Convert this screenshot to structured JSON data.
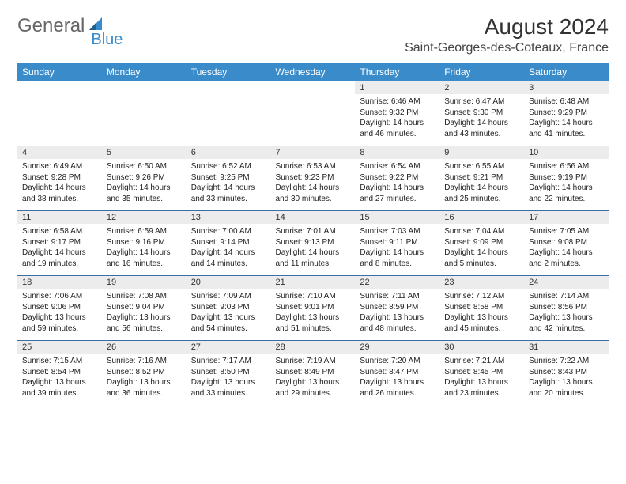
{
  "logo": {
    "word1": "General",
    "word2": "Blue"
  },
  "title": "August 2024",
  "location": "Saint-Georges-des-Coteaux, France",
  "colors": {
    "header_bg": "#3a8bc9",
    "header_text": "#ffffff",
    "daynum_bg": "#ececec",
    "cell_border": "#3a6ea5",
    "title_color": "#333333",
    "body_text": "#222222"
  },
  "typography": {
    "title_fontsize": 28,
    "location_fontsize": 16,
    "dayheader_fontsize": 12,
    "body_fontsize": 10
  },
  "dayHeaders": [
    "Sunday",
    "Monday",
    "Tuesday",
    "Wednesday",
    "Thursday",
    "Friday",
    "Saturday"
  ],
  "weeks": [
    [
      null,
      null,
      null,
      null,
      {
        "num": "1",
        "sunrise": "6:46 AM",
        "sunset": "9:32 PM",
        "daylight": "14 hours and 46 minutes."
      },
      {
        "num": "2",
        "sunrise": "6:47 AM",
        "sunset": "9:30 PM",
        "daylight": "14 hours and 43 minutes."
      },
      {
        "num": "3",
        "sunrise": "6:48 AM",
        "sunset": "9:29 PM",
        "daylight": "14 hours and 41 minutes."
      }
    ],
    [
      {
        "num": "4",
        "sunrise": "6:49 AM",
        "sunset": "9:28 PM",
        "daylight": "14 hours and 38 minutes."
      },
      {
        "num": "5",
        "sunrise": "6:50 AM",
        "sunset": "9:26 PM",
        "daylight": "14 hours and 35 minutes."
      },
      {
        "num": "6",
        "sunrise": "6:52 AM",
        "sunset": "9:25 PM",
        "daylight": "14 hours and 33 minutes."
      },
      {
        "num": "7",
        "sunrise": "6:53 AM",
        "sunset": "9:23 PM",
        "daylight": "14 hours and 30 minutes."
      },
      {
        "num": "8",
        "sunrise": "6:54 AM",
        "sunset": "9:22 PM",
        "daylight": "14 hours and 27 minutes."
      },
      {
        "num": "9",
        "sunrise": "6:55 AM",
        "sunset": "9:21 PM",
        "daylight": "14 hours and 25 minutes."
      },
      {
        "num": "10",
        "sunrise": "6:56 AM",
        "sunset": "9:19 PM",
        "daylight": "14 hours and 22 minutes."
      }
    ],
    [
      {
        "num": "11",
        "sunrise": "6:58 AM",
        "sunset": "9:17 PM",
        "daylight": "14 hours and 19 minutes."
      },
      {
        "num": "12",
        "sunrise": "6:59 AM",
        "sunset": "9:16 PM",
        "daylight": "14 hours and 16 minutes."
      },
      {
        "num": "13",
        "sunrise": "7:00 AM",
        "sunset": "9:14 PM",
        "daylight": "14 hours and 14 minutes."
      },
      {
        "num": "14",
        "sunrise": "7:01 AM",
        "sunset": "9:13 PM",
        "daylight": "14 hours and 11 minutes."
      },
      {
        "num": "15",
        "sunrise": "7:03 AM",
        "sunset": "9:11 PM",
        "daylight": "14 hours and 8 minutes."
      },
      {
        "num": "16",
        "sunrise": "7:04 AM",
        "sunset": "9:09 PM",
        "daylight": "14 hours and 5 minutes."
      },
      {
        "num": "17",
        "sunrise": "7:05 AM",
        "sunset": "9:08 PM",
        "daylight": "14 hours and 2 minutes."
      }
    ],
    [
      {
        "num": "18",
        "sunrise": "7:06 AM",
        "sunset": "9:06 PM",
        "daylight": "13 hours and 59 minutes."
      },
      {
        "num": "19",
        "sunrise": "7:08 AM",
        "sunset": "9:04 PM",
        "daylight": "13 hours and 56 minutes."
      },
      {
        "num": "20",
        "sunrise": "7:09 AM",
        "sunset": "9:03 PM",
        "daylight": "13 hours and 54 minutes."
      },
      {
        "num": "21",
        "sunrise": "7:10 AM",
        "sunset": "9:01 PM",
        "daylight": "13 hours and 51 minutes."
      },
      {
        "num": "22",
        "sunrise": "7:11 AM",
        "sunset": "8:59 PM",
        "daylight": "13 hours and 48 minutes."
      },
      {
        "num": "23",
        "sunrise": "7:12 AM",
        "sunset": "8:58 PM",
        "daylight": "13 hours and 45 minutes."
      },
      {
        "num": "24",
        "sunrise": "7:14 AM",
        "sunset": "8:56 PM",
        "daylight": "13 hours and 42 minutes."
      }
    ],
    [
      {
        "num": "25",
        "sunrise": "7:15 AM",
        "sunset": "8:54 PM",
        "daylight": "13 hours and 39 minutes."
      },
      {
        "num": "26",
        "sunrise": "7:16 AM",
        "sunset": "8:52 PM",
        "daylight": "13 hours and 36 minutes."
      },
      {
        "num": "27",
        "sunrise": "7:17 AM",
        "sunset": "8:50 PM",
        "daylight": "13 hours and 33 minutes."
      },
      {
        "num": "28",
        "sunrise": "7:19 AM",
        "sunset": "8:49 PM",
        "daylight": "13 hours and 29 minutes."
      },
      {
        "num": "29",
        "sunrise": "7:20 AM",
        "sunset": "8:47 PM",
        "daylight": "13 hours and 26 minutes."
      },
      {
        "num": "30",
        "sunrise": "7:21 AM",
        "sunset": "8:45 PM",
        "daylight": "13 hours and 23 minutes."
      },
      {
        "num": "31",
        "sunrise": "7:22 AM",
        "sunset": "8:43 PM",
        "daylight": "13 hours and 20 minutes."
      }
    ]
  ],
  "labels": {
    "sunrise": "Sunrise:",
    "sunset": "Sunset:",
    "daylight": "Daylight:"
  }
}
